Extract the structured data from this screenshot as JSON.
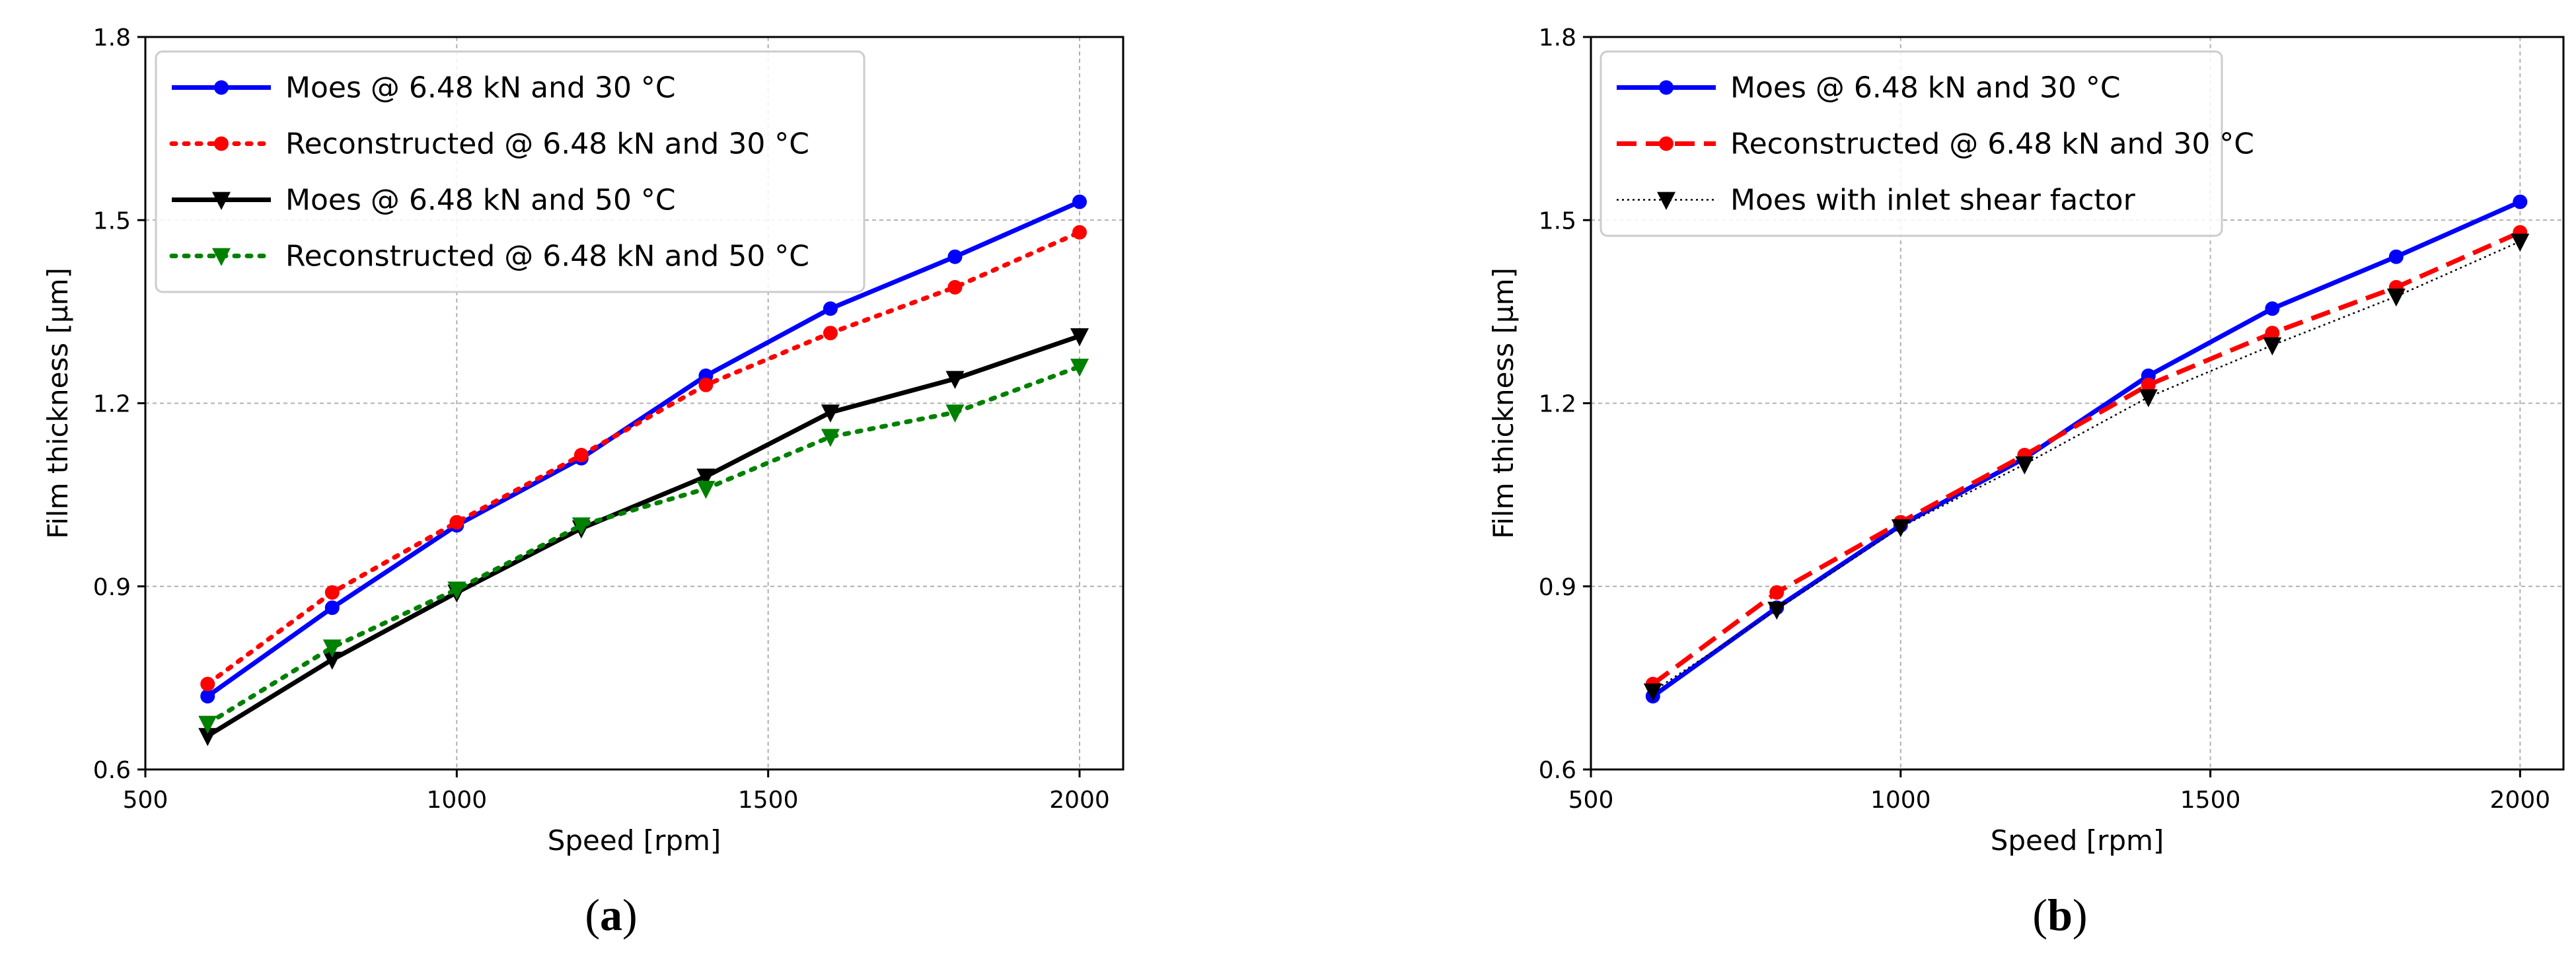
{
  "figure": {
    "panels": [
      {
        "caption_open": "(",
        "caption_letter": "a",
        "caption_close": ")"
      },
      {
        "caption_open": "(",
        "caption_letter": "b",
        "caption_close": ")"
      }
    ]
  },
  "chart_data": [
    {
      "type": "line",
      "title": "",
      "xlabel": "Speed [rpm]",
      "ylabel": "Film thickness [µm]",
      "xlim": [
        500,
        2070
      ],
      "ylim": [
        0.6,
        1.8
      ],
      "xticks": [
        500,
        1000,
        1500,
        2000
      ],
      "yticks": [
        0.6,
        0.9,
        1.2,
        1.5,
        1.8
      ],
      "xtick_labels": [
        "500",
        "1000",
        "1500",
        "2000"
      ],
      "ytick_labels": [
        "0.6",
        "0.9",
        "1.2",
        "1.5",
        "1.8"
      ],
      "grid": true,
      "legend_position": "top-left",
      "x": [
        600,
        800,
        1000,
        1200,
        1400,
        1600,
        1800,
        2000
      ],
      "series": [
        {
          "name": "Moes @ 6.48 kN and 30 °C",
          "color": "#0000ff",
          "dash": "solid",
          "marker": "circle",
          "values": [
            0.72,
            0.865,
            1.0,
            1.11,
            1.245,
            1.355,
            1.44,
            1.53
          ]
        },
        {
          "name": "Reconstructed @ 6.48 kN and 30 °C",
          "color": "#ff0000",
          "dash": "dotted",
          "marker": "circle",
          "values": [
            0.74,
            0.89,
            1.005,
            1.115,
            1.23,
            1.315,
            1.39,
            1.48
          ]
        },
        {
          "name": "Moes @ 6.48 kN and 50 °C",
          "color": "#000000",
          "dash": "solid",
          "marker": "triangle-down",
          "values": [
            0.655,
            0.78,
            0.89,
            0.995,
            1.08,
            1.185,
            1.24,
            1.31
          ]
        },
        {
          "name": "Reconstructed @ 6.48 kN and 50 °C",
          "color": "#008000",
          "dash": "dotted",
          "marker": "triangle-down",
          "values": [
            0.675,
            0.8,
            0.895,
            1.0,
            1.06,
            1.145,
            1.185,
            1.26
          ]
        }
      ]
    },
    {
      "type": "line",
      "title": "",
      "xlabel": "Speed [rpm]",
      "ylabel": "Film thickness [µm]",
      "xlim": [
        500,
        2070
      ],
      "ylim": [
        0.6,
        1.8
      ],
      "xticks": [
        500,
        1000,
        1500,
        2000
      ],
      "yticks": [
        0.6,
        0.9,
        1.2,
        1.5,
        1.8
      ],
      "xtick_labels": [
        "500",
        "1000",
        "1500",
        "2000"
      ],
      "ytick_labels": [
        "0.6",
        "0.9",
        "1.2",
        "1.5",
        "1.8"
      ],
      "grid": true,
      "legend_position": "top-left",
      "x": [
        600,
        800,
        1000,
        1200,
        1400,
        1600,
        1800,
        2000
      ],
      "series": [
        {
          "name": "Moes @ 6.48 kN and 30 °C",
          "color": "#0000ff",
          "dash": "solid",
          "marker": "circle",
          "values": [
            0.72,
            0.865,
            1.0,
            1.11,
            1.245,
            1.355,
            1.44,
            1.53
          ]
        },
        {
          "name": "Reconstructed @ 6.48 kN and 30 °C",
          "color": "#ff0000",
          "dash": "dashed",
          "marker": "circle",
          "values": [
            0.74,
            0.89,
            1.005,
            1.115,
            1.23,
            1.315,
            1.39,
            1.48
          ]
        },
        {
          "name": "Moes with inlet shear factor",
          "color": "#000000",
          "dash": "thin-dotted",
          "marker": "triangle-down",
          "values": [
            0.728,
            0.862,
            0.997,
            1.1,
            1.21,
            1.295,
            1.375,
            1.465
          ]
        }
      ]
    }
  ]
}
